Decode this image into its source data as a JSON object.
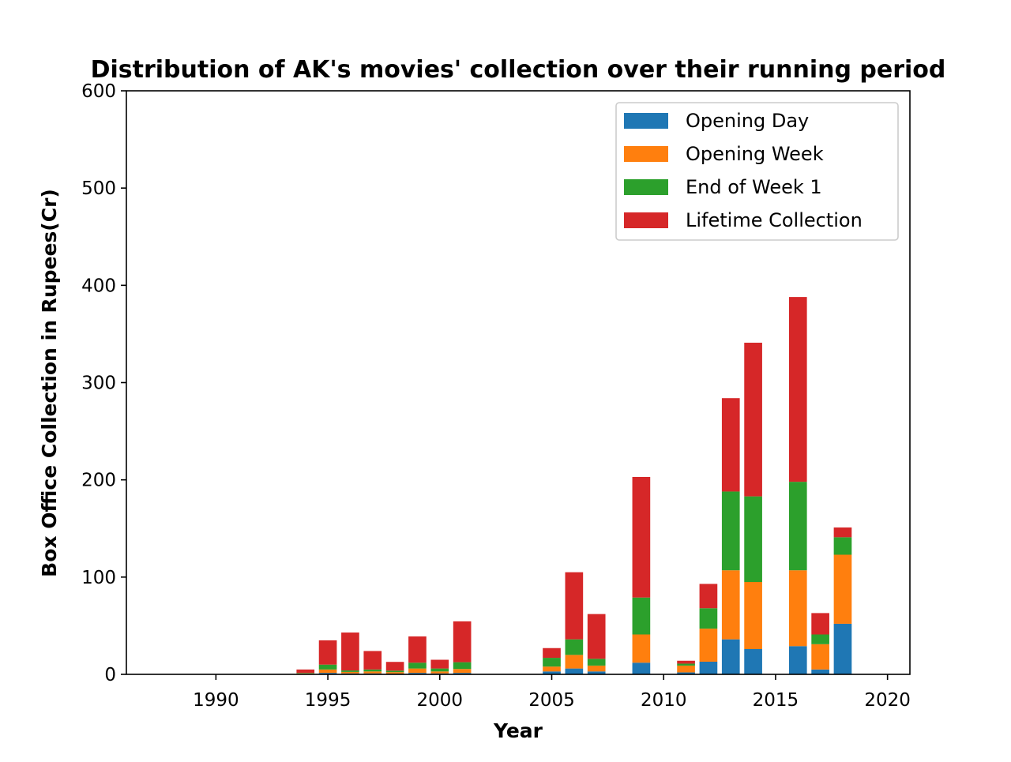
{
  "chart_data": {
    "type": "bar",
    "stacked": true,
    "title": "Distribution of AK's movies' collection over their running period",
    "xlabel": "Year",
    "ylabel": "Box Office Collection in Rupees(Cr)",
    "xlim": [
      1986,
      2021
    ],
    "ylim": [
      0,
      600
    ],
    "x_ticks": [
      1990,
      1995,
      2000,
      2005,
      2010,
      2015,
      2020
    ],
    "y_ticks": [
      0,
      100,
      200,
      300,
      400,
      500,
      600
    ],
    "grid": false,
    "legend_position": "top-right",
    "x": [
      1994,
      1995,
      1996,
      1997,
      1998,
      1999,
      2000,
      2001,
      2005,
      2006,
      2007,
      2009,
      2011,
      2012,
      2013,
      2014,
      2016,
      2017,
      2018
    ],
    "series": [
      {
        "name": "Opening Day",
        "color": "#1f77b4",
        "values": [
          0.5,
          1.5,
          1,
          1,
          0.8,
          1.5,
          1,
          1.5,
          3,
          6,
          3,
          12,
          2,
          13,
          36,
          26,
          29,
          5,
          52
        ]
      },
      {
        "name": "Opening Week",
        "color": "#ff7f0e",
        "values": [
          0.5,
          3.5,
          1.5,
          2,
          1.5,
          4.5,
          2,
          4,
          5,
          14,
          6,
          29,
          7,
          34,
          71,
          69,
          78,
          26,
          71
        ]
      },
      {
        "name": "End of Week 1",
        "color": "#2ca02c",
        "values": [
          0.5,
          5,
          1.5,
          2,
          1.5,
          6,
          3,
          7,
          9,
          16,
          7,
          38,
          2,
          21,
          81,
          88,
          91,
          10,
          18
        ]
      },
      {
        "name": "Lifetime Collection",
        "color": "#d62728",
        "values": [
          3.5,
          25,
          39,
          19,
          9,
          27,
          9,
          42,
          10,
          69,
          46,
          124,
          3,
          25,
          96,
          158,
          190,
          22,
          10
        ]
      }
    ]
  }
}
